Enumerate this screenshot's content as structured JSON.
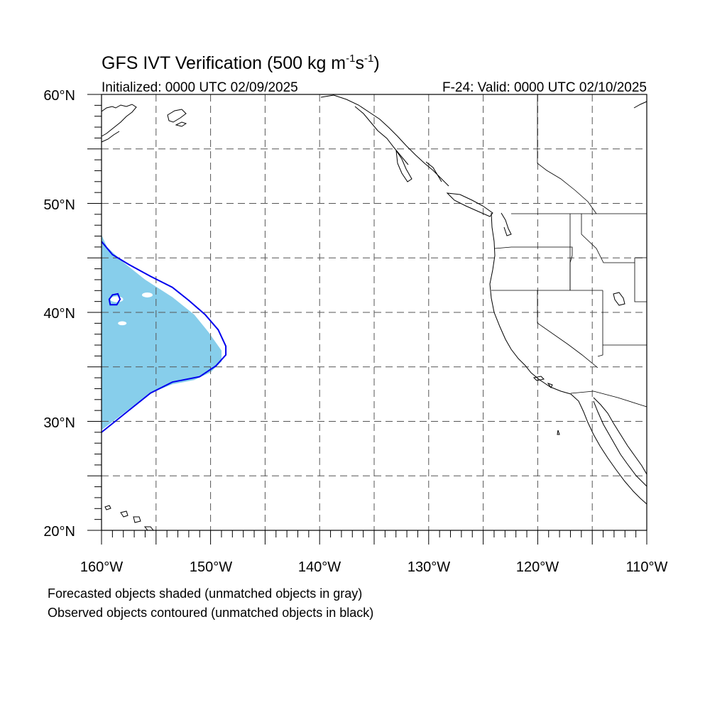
{
  "title": {
    "main": "GFS IVT Verification (500 kg m",
    "sup1": "-1",
    "mid": "s",
    "sup2": "-1",
    "end": ")"
  },
  "subtitle_left": "Initialized: 0000 UTC 02/09/2025",
  "subtitle_right": "F-24: Valid: 0000 UTC 02/10/2025",
  "lon_labels": [
    "160°W",
    "150°W",
    "140°W",
    "130°W",
    "120°W",
    "110°W"
  ],
  "lat_labels": [
    "60°N",
    "50°N",
    "40°N",
    "30°N",
    "20°N"
  ],
  "notes": [
    "Forecasted objects shaded (unmatched objects in gray)",
    "Observed objects contoured (unmatched objects in black)"
  ],
  "map": {
    "lon_range": [
      -160,
      -110
    ],
    "lat_range": [
      20,
      60
    ],
    "grid_lon": [
      -155,
      -150,
      -145,
      -140,
      -135,
      -130,
      -125,
      -120,
      -115
    ],
    "grid_lat": [
      25,
      30,
      35,
      40,
      45,
      50,
      55
    ],
    "forecast_fill_color": "#87ceeb",
    "observed_contour_color": "#0000ee",
    "forecast_object": [
      [
        -160,
        47.1
      ],
      [
        -159.5,
        46
      ],
      [
        -158,
        44.6
      ],
      [
        -156,
        43
      ],
      [
        -153.5,
        41.4
      ],
      [
        -151.5,
        39.8
      ],
      [
        -150.2,
        38.2
      ],
      [
        -149,
        36.5
      ],
      [
        -149,
        35.5
      ],
      [
        -150,
        34.5
      ],
      [
        -151.5,
        33.8
      ],
      [
        -153.5,
        33.4
      ],
      [
        -155.5,
        32.6
      ],
      [
        -157.5,
        31.1
      ],
      [
        -160,
        29.2
      ]
    ],
    "observed_contour": [
      [
        -160,
        46.5
      ],
      [
        -159,
        45.3
      ],
      [
        -157.5,
        44.4
      ],
      [
        -155.5,
        43.3
      ],
      [
        -153.5,
        42.3
      ],
      [
        -152,
        41.1
      ],
      [
        -150.5,
        39.8
      ],
      [
        -149.3,
        38.4
      ],
      [
        -148.6,
        36.9
      ],
      [
        -148.6,
        36.1
      ],
      [
        -149.5,
        35.1
      ],
      [
        -151,
        34.1
      ],
      [
        -153.5,
        33.6
      ],
      [
        -155.5,
        32.6
      ],
      [
        -157.5,
        31.0
      ],
      [
        -160,
        29.0
      ]
    ],
    "observed_small_contour": [
      [
        -159,
        41.6
      ],
      [
        -158.5,
        41.7
      ],
      [
        -158.3,
        41.2
      ],
      [
        -158.6,
        40.7
      ],
      [
        -159.2,
        40.7
      ],
      [
        -159.3,
        41.2
      ]
    ]
  }
}
